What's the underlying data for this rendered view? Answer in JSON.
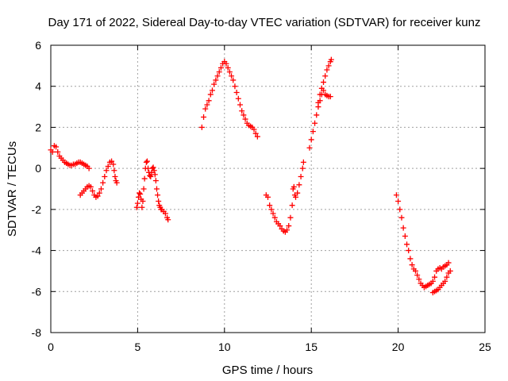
{
  "chart_data": {
    "type": "scatter",
    "title": "Day 171 of 2022, Sidereal Day-to-day VTEC variation (SDTVAR) for receiver kunz",
    "xlabel": "GPS time / hours",
    "ylabel": "SDTVAR / TECUs",
    "xlim": [
      0,
      25
    ],
    "ylim": [
      -8,
      6
    ],
    "xticks": [
      0,
      5,
      10,
      15,
      20,
      25
    ],
    "yticks": [
      -8,
      -6,
      -4,
      -2,
      0,
      2,
      4,
      6
    ],
    "grid": true,
    "marker": "+",
    "color": "#ff0000",
    "series": [
      {
        "points": [
          [
            0.0,
            0.9
          ],
          [
            0.1,
            0.8
          ],
          [
            0.2,
            1.1
          ],
          [
            0.3,
            1.05
          ],
          [
            0.4,
            0.8
          ],
          [
            0.5,
            0.6
          ],
          [
            0.6,
            0.5
          ],
          [
            0.7,
            0.4
          ],
          [
            0.8,
            0.3
          ],
          [
            0.9,
            0.25
          ],
          [
            1.0,
            0.2
          ],
          [
            1.1,
            0.15
          ],
          [
            1.2,
            0.15
          ],
          [
            1.3,
            0.2
          ],
          [
            1.4,
            0.2
          ],
          [
            1.5,
            0.25
          ],
          [
            1.6,
            0.3
          ],
          [
            1.7,
            0.3
          ],
          [
            1.8,
            0.25
          ],
          [
            1.9,
            0.2
          ],
          [
            2.0,
            0.15
          ],
          [
            2.1,
            0.1
          ],
          [
            2.2,
            0.0
          ]
        ]
      },
      {
        "points": [
          [
            1.7,
            -1.3
          ],
          [
            1.8,
            -1.2
          ],
          [
            1.9,
            -1.1
          ],
          [
            2.0,
            -1.0
          ],
          [
            2.1,
            -0.9
          ],
          [
            2.2,
            -0.85
          ],
          [
            2.3,
            -0.9
          ],
          [
            2.4,
            -1.1
          ],
          [
            2.5,
            -1.3
          ],
          [
            2.6,
            -1.4
          ],
          [
            2.7,
            -1.35
          ],
          [
            2.8,
            -1.2
          ],
          [
            2.9,
            -1.0
          ],
          [
            3.0,
            -0.7
          ],
          [
            3.1,
            -0.4
          ],
          [
            3.2,
            -0.1
          ],
          [
            3.3,
            0.1
          ],
          [
            3.4,
            0.3
          ],
          [
            3.5,
            0.35
          ],
          [
            3.6,
            0.2
          ],
          [
            3.65,
            -0.1
          ],
          [
            3.7,
            -0.4
          ],
          [
            3.75,
            -0.6
          ],
          [
            3.8,
            -0.7
          ]
        ]
      },
      {
        "points": [
          [
            4.95,
            -1.9
          ],
          [
            5.0,
            -1.7
          ],
          [
            5.05,
            -1.4
          ],
          [
            5.1,
            -1.2
          ],
          [
            5.15,
            -1.25
          ],
          [
            5.2,
            -1.5
          ],
          [
            5.25,
            -1.9
          ],
          [
            5.3,
            -1.6
          ],
          [
            5.35,
            -1.0
          ],
          [
            5.4,
            -0.5
          ],
          [
            5.45,
            0.0
          ],
          [
            5.5,
            0.3
          ],
          [
            5.55,
            0.35
          ],
          [
            5.6,
            0.0
          ],
          [
            5.65,
            -0.2
          ],
          [
            5.7,
            -0.35
          ],
          [
            5.75,
            -0.4
          ],
          [
            5.8,
            -0.2
          ],
          [
            5.85,
            0.0
          ],
          [
            5.9,
            0.05
          ],
          [
            5.95,
            -0.1
          ],
          [
            6.0,
            -0.3
          ],
          [
            6.05,
            -0.6
          ],
          [
            6.1,
            -1.0
          ],
          [
            6.15,
            -1.3
          ],
          [
            6.2,
            -1.6
          ],
          [
            6.25,
            -1.8
          ],
          [
            6.3,
            -1.9
          ],
          [
            6.35,
            -2.0
          ],
          [
            6.4,
            -2.0
          ],
          [
            6.5,
            -2.1
          ],
          [
            6.6,
            -2.2
          ],
          [
            6.7,
            -2.4
          ],
          [
            6.75,
            -2.5
          ]
        ]
      },
      {
        "points": [
          [
            8.7,
            2.0
          ],
          [
            8.8,
            2.5
          ],
          [
            8.9,
            2.9
          ],
          [
            9.0,
            3.1
          ],
          [
            9.1,
            3.3
          ],
          [
            9.2,
            3.6
          ],
          [
            9.3,
            3.8
          ],
          [
            9.4,
            4.1
          ],
          [
            9.5,
            4.3
          ],
          [
            9.6,
            4.5
          ],
          [
            9.7,
            4.7
          ],
          [
            9.8,
            4.9
          ],
          [
            9.9,
            5.1
          ],
          [
            10.0,
            5.2
          ],
          [
            10.1,
            5.1
          ],
          [
            10.2,
            4.9
          ],
          [
            10.3,
            4.7
          ],
          [
            10.4,
            4.5
          ],
          [
            10.5,
            4.3
          ],
          [
            10.6,
            4.0
          ],
          [
            10.7,
            3.7
          ],
          [
            10.8,
            3.4
          ],
          [
            10.9,
            3.1
          ],
          [
            11.0,
            2.8
          ],
          [
            11.1,
            2.6
          ],
          [
            11.2,
            2.4
          ],
          [
            11.3,
            2.2
          ],
          [
            11.4,
            2.1
          ],
          [
            11.5,
            2.05
          ],
          [
            11.6,
            2.0
          ],
          [
            11.7,
            1.9
          ],
          [
            11.8,
            1.7
          ],
          [
            11.9,
            1.55
          ]
        ]
      },
      {
        "points": [
          [
            12.4,
            -1.3
          ],
          [
            12.5,
            -1.4
          ],
          [
            12.6,
            -1.8
          ],
          [
            12.7,
            -2.0
          ],
          [
            12.8,
            -2.2
          ],
          [
            12.9,
            -2.4
          ],
          [
            13.0,
            -2.6
          ],
          [
            13.1,
            -2.7
          ],
          [
            13.2,
            -2.8
          ],
          [
            13.3,
            -2.95
          ],
          [
            13.4,
            -3.05
          ],
          [
            13.5,
            -3.1
          ],
          [
            13.6,
            -3.0
          ],
          [
            13.7,
            -2.8
          ],
          [
            13.8,
            -2.4
          ],
          [
            13.9,
            -1.8
          ],
          [
            13.95,
            -1.0
          ],
          [
            14.0,
            -0.9
          ],
          [
            14.05,
            -1.3
          ],
          [
            14.1,
            -1.4
          ],
          [
            14.2,
            -1.2
          ],
          [
            14.3,
            -0.8
          ],
          [
            14.4,
            -0.4
          ],
          [
            14.5,
            0.0
          ],
          [
            14.55,
            0.3
          ]
        ]
      },
      {
        "points": [
          [
            14.9,
            1.0
          ],
          [
            15.0,
            1.4
          ],
          [
            15.1,
            1.8
          ],
          [
            15.2,
            2.2
          ],
          [
            15.3,
            2.6
          ],
          [
            15.4,
            3.0
          ],
          [
            15.5,
            3.3
          ],
          [
            15.6,
            3.6
          ],
          [
            15.7,
            3.8
          ],
          [
            15.8,
            3.6
          ],
          [
            15.9,
            3.55
          ],
          [
            16.0,
            3.5
          ],
          [
            16.1,
            3.5
          ]
        ]
      },
      {
        "points": [
          [
            15.4,
            3.2
          ],
          [
            15.5,
            3.6
          ],
          [
            15.6,
            3.9
          ],
          [
            15.7,
            4.2
          ],
          [
            15.8,
            4.5
          ],
          [
            15.9,
            4.8
          ],
          [
            16.0,
            5.0
          ],
          [
            16.1,
            5.2
          ],
          [
            16.15,
            5.3
          ]
        ]
      },
      {
        "points": [
          [
            19.9,
            -1.3
          ],
          [
            20.0,
            -1.6
          ],
          [
            20.1,
            -2.0
          ],
          [
            20.2,
            -2.4
          ],
          [
            20.3,
            -2.9
          ],
          [
            20.4,
            -3.3
          ],
          [
            20.5,
            -3.7
          ],
          [
            20.6,
            -4.0
          ],
          [
            20.7,
            -4.4
          ],
          [
            20.8,
            -4.7
          ],
          [
            20.9,
            -4.9
          ],
          [
            21.0,
            -5.0
          ],
          [
            21.1,
            -5.2
          ],
          [
            21.2,
            -5.4
          ],
          [
            21.3,
            -5.6
          ],
          [
            21.4,
            -5.7
          ],
          [
            21.5,
            -5.8
          ],
          [
            21.6,
            -5.75
          ],
          [
            21.7,
            -5.7
          ],
          [
            21.8,
            -5.65
          ],
          [
            21.9,
            -5.6
          ],
          [
            22.0,
            -5.5
          ],
          [
            22.1,
            -5.3
          ],
          [
            22.2,
            -5.0
          ],
          [
            22.3,
            -4.9
          ],
          [
            22.4,
            -4.85
          ],
          [
            22.5,
            -4.9
          ],
          [
            22.6,
            -4.8
          ],
          [
            22.7,
            -4.75
          ],
          [
            22.8,
            -4.7
          ],
          [
            22.9,
            -4.6
          ]
        ]
      },
      {
        "points": [
          [
            22.0,
            -6.05
          ],
          [
            22.1,
            -6.0
          ],
          [
            22.2,
            -5.95
          ],
          [
            22.3,
            -5.9
          ],
          [
            22.4,
            -5.8
          ],
          [
            22.5,
            -5.7
          ],
          [
            22.6,
            -5.6
          ],
          [
            22.7,
            -5.5
          ],
          [
            22.8,
            -5.3
          ],
          [
            22.9,
            -5.1
          ],
          [
            23.0,
            -5.0
          ]
        ]
      }
    ]
  }
}
